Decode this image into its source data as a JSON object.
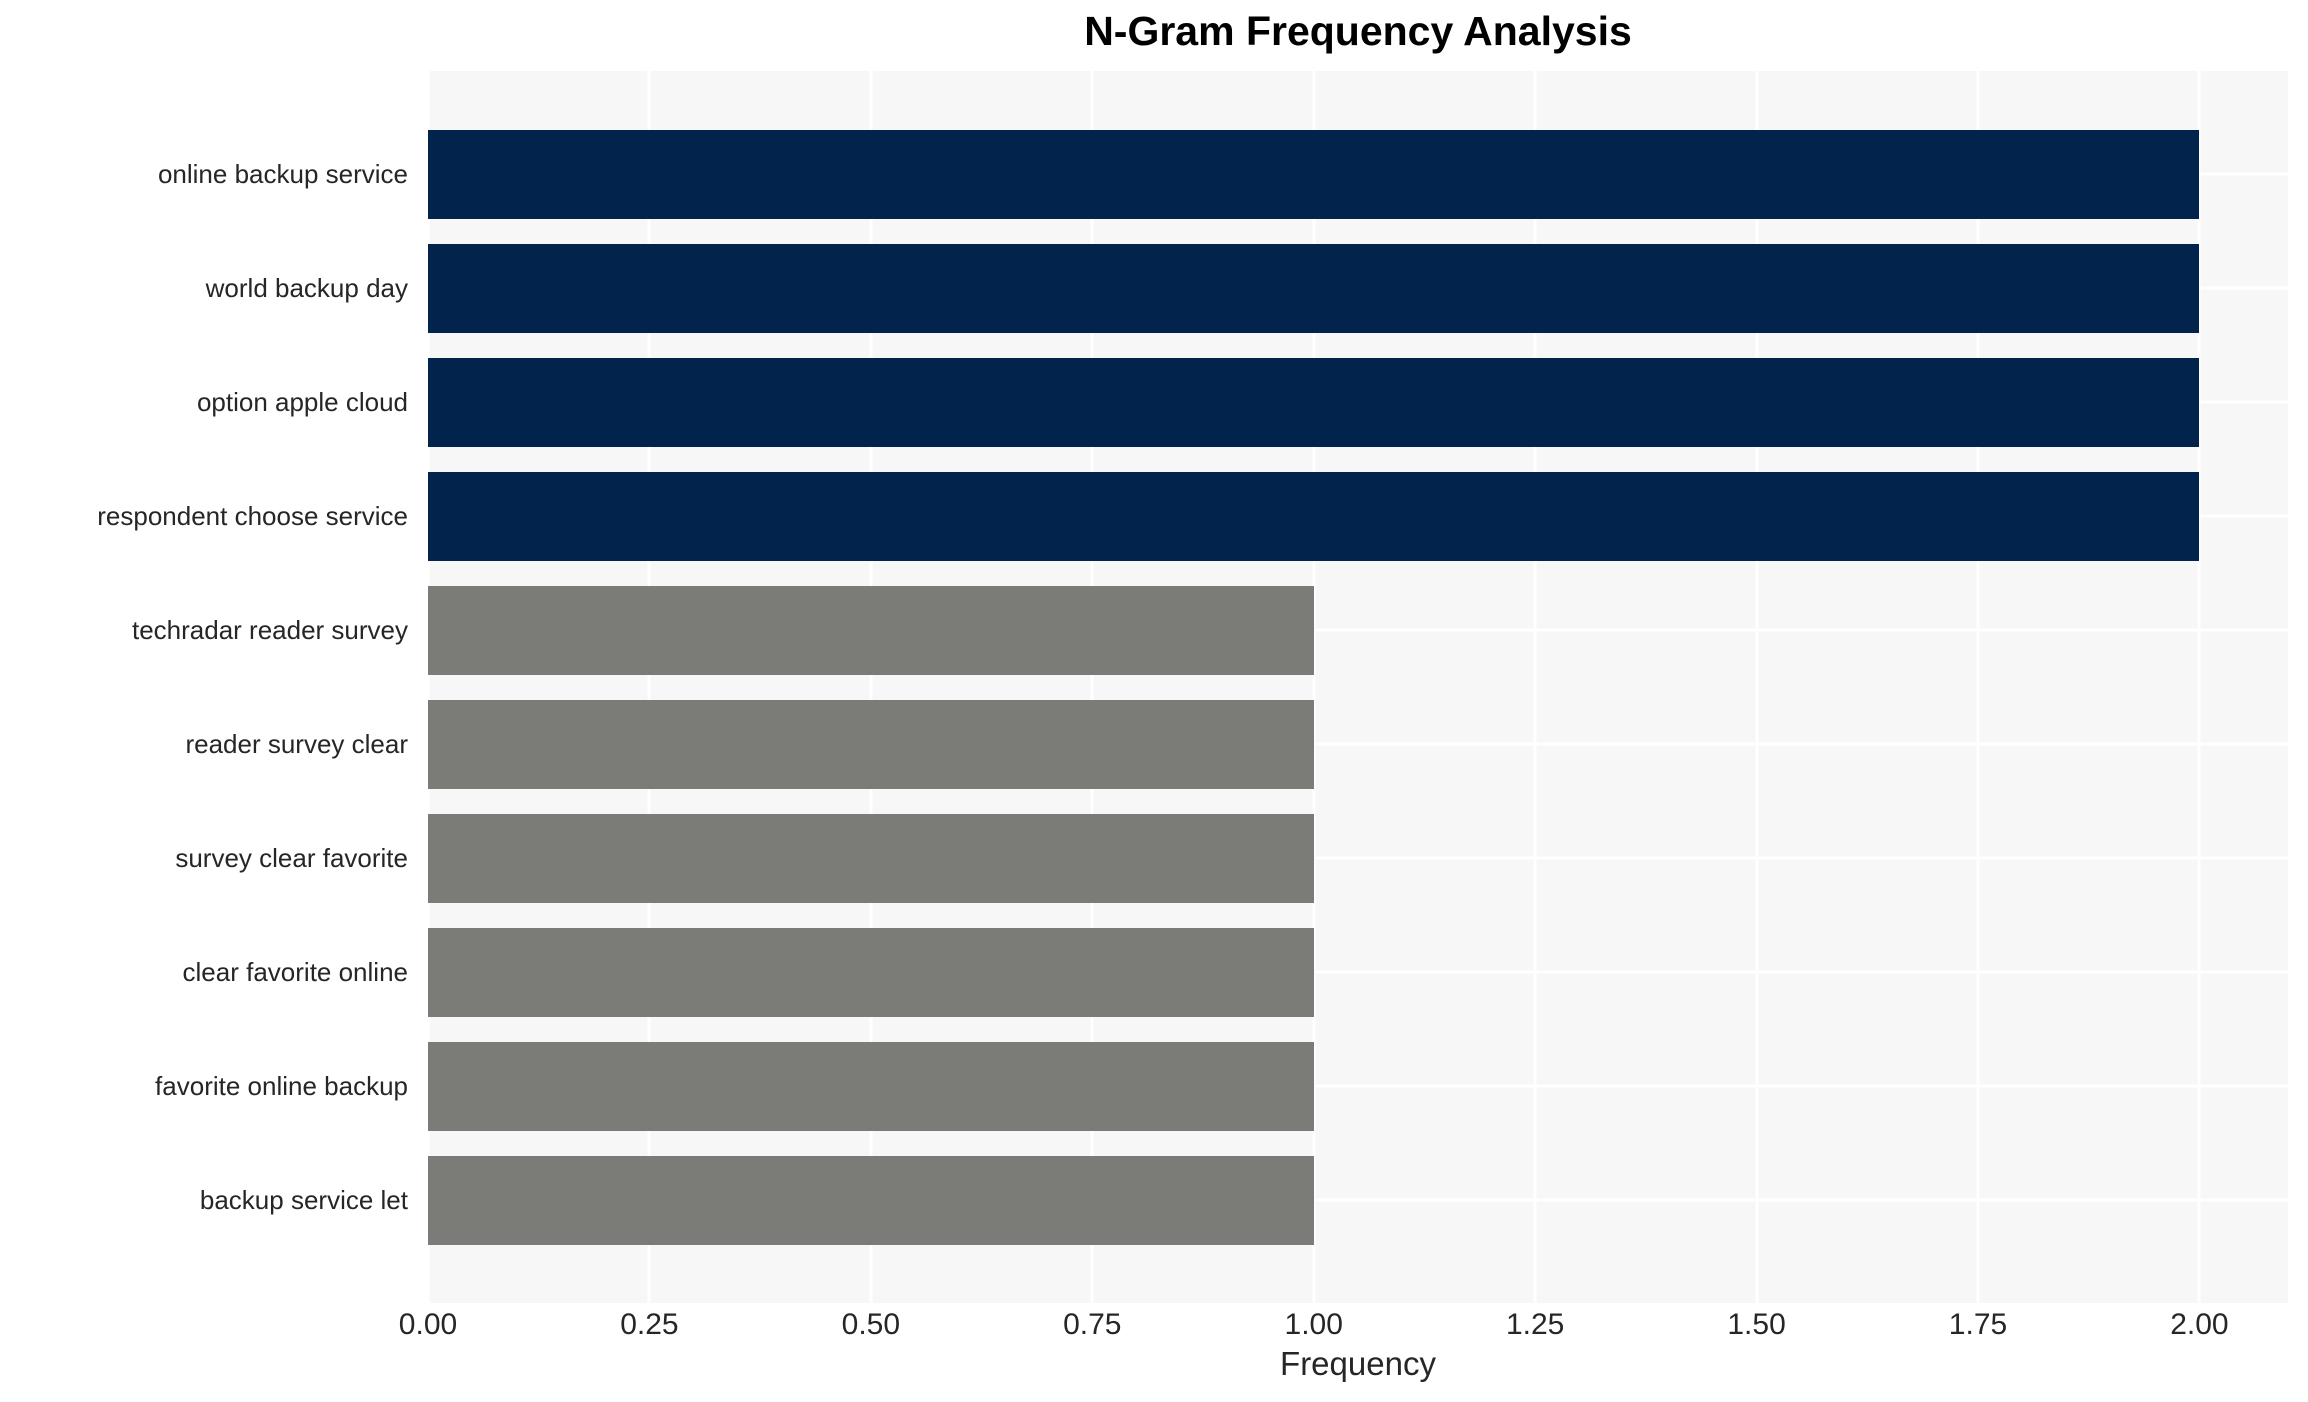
{
  "page": {
    "background": "#ffffff"
  },
  "chart_data": {
    "type": "bar",
    "orientation": "horizontal",
    "title": "N-Gram Frequency Analysis",
    "xlabel": "Frequency",
    "ylabel": "",
    "categories": [
      "online backup service",
      "world backup day",
      "option apple cloud",
      "respondent choose service",
      "techradar reader survey",
      "reader survey clear",
      "survey clear favorite",
      "clear favorite online",
      "favorite online backup",
      "backup service let"
    ],
    "values": [
      2,
      2,
      2,
      2,
      1,
      1,
      1,
      1,
      1,
      1
    ],
    "bar_colors": [
      "#02244c",
      "#02244c",
      "#02244c",
      "#02244c",
      "#7b7b77",
      "#7b7b77",
      "#7b7b77",
      "#7b7b77",
      "#7b7b77",
      "#7b7b77"
    ],
    "xlim": [
      0,
      2.1
    ],
    "xticks": [
      {
        "value": 0.0,
        "label": "0.00"
      },
      {
        "value": 0.25,
        "label": "0.25"
      },
      {
        "value": 0.5,
        "label": "0.50"
      },
      {
        "value": 0.75,
        "label": "0.75"
      },
      {
        "value": 1.0,
        "label": "1.00"
      },
      {
        "value": 1.25,
        "label": "1.25"
      },
      {
        "value": 1.5,
        "label": "1.50"
      },
      {
        "value": 1.75,
        "label": "1.75"
      },
      {
        "value": 2.0,
        "label": "2.00"
      }
    ],
    "grid": true,
    "legend": false,
    "plot_background": "#f7f7f7",
    "gridline_color": "#ffffff",
    "text_color": "#262626",
    "title_color": "#000000"
  }
}
